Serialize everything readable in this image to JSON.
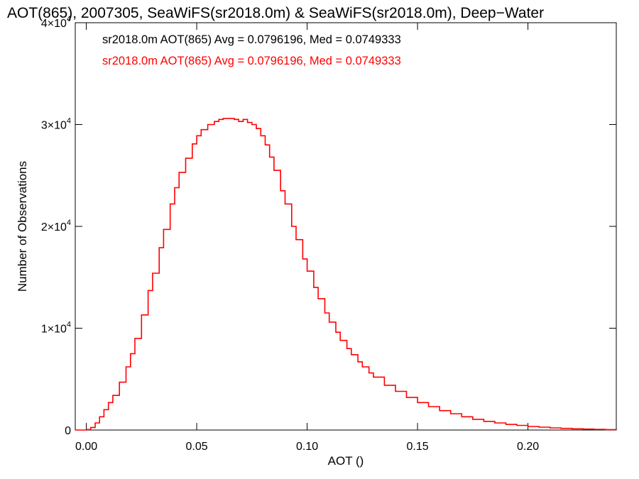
{
  "chart_data": {
    "type": "line",
    "title": "AOT(865), 2007305, SeaWiFS(sr2018.0m) & SeaWiFS(sr2018.0m), Deep−Water",
    "xlabel": "AOT ()",
    "ylabel": "Number of Observations",
    "xlim": [
      -0.005,
      0.24
    ],
    "ylim": [
      0,
      40000
    ],
    "grid": false,
    "line_style": "histogram-step",
    "xticks": [
      "0.00",
      "0.05",
      "0.10",
      "0.15",
      "0.20"
    ],
    "xtick_values": [
      0.0,
      0.05,
      0.1,
      0.15,
      0.2
    ],
    "ytick_values": [
      0,
      10000,
      20000,
      30000,
      40000
    ],
    "ytick_labels": [
      {
        "base": "0",
        "exp": ""
      },
      {
        "base": "1×10",
        "exp": "4"
      },
      {
        "base": "2×10",
        "exp": "4"
      },
      {
        "base": "3×10",
        "exp": "4"
      },
      {
        "base": "4×10",
        "exp": "4"
      }
    ],
    "annotations": [
      {
        "text": "sr2018.0m AOT(865) Avg = 0.0796196, Med = 0.0749333",
        "color": "#000000"
      },
      {
        "text": "sr2018.0m AOT(865) Avg = 0.0796196, Med = 0.0749333",
        "color": "#ff0000"
      }
    ],
    "series": [
      {
        "color": "#ff0000",
        "x": [
          -0.005,
          -0.002,
          0.0,
          0.002,
          0.004,
          0.006,
          0.008,
          0.01,
          0.012,
          0.015,
          0.018,
          0.02,
          0.022,
          0.025,
          0.028,
          0.03,
          0.033,
          0.035,
          0.038,
          0.04,
          0.042,
          0.045,
          0.048,
          0.05,
          0.052,
          0.055,
          0.058,
          0.06,
          0.062,
          0.065,
          0.067,
          0.069,
          0.071,
          0.073,
          0.075,
          0.077,
          0.079,
          0.081,
          0.083,
          0.085,
          0.088,
          0.09,
          0.093,
          0.095,
          0.098,
          0.1,
          0.103,
          0.105,
          0.108,
          0.11,
          0.113,
          0.115,
          0.118,
          0.12,
          0.123,
          0.125,
          0.128,
          0.13,
          0.135,
          0.14,
          0.145,
          0.15,
          0.155,
          0.16,
          0.165,
          0.17,
          0.175,
          0.18,
          0.185,
          0.19,
          0.195,
          0.2,
          0.205,
          0.21,
          0.215,
          0.22,
          0.225,
          0.23,
          0.235,
          0.24
        ],
        "values": [
          0,
          0,
          50,
          250,
          700,
          1300,
          2000,
          2700,
          3400,
          4700,
          6200,
          7500,
          9000,
          11300,
          13700,
          15400,
          17900,
          19700,
          22200,
          23800,
          25300,
          26700,
          28100,
          28900,
          29500,
          30000,
          30300,
          30500,
          30600,
          30600,
          30500,
          30300,
          30500,
          30200,
          30000,
          29600,
          28900,
          28000,
          26800,
          25500,
          23500,
          22200,
          20000,
          18700,
          16800,
          15600,
          14000,
          12900,
          11500,
          10600,
          9600,
          8800,
          8000,
          7400,
          6700,
          6200,
          5600,
          5200,
          4400,
          3800,
          3200,
          2700,
          2300,
          1900,
          1600,
          1300,
          1050,
          850,
          700,
          550,
          450,
          350,
          280,
          210,
          160,
          120,
          90,
          60,
          40,
          20
        ]
      }
    ]
  }
}
